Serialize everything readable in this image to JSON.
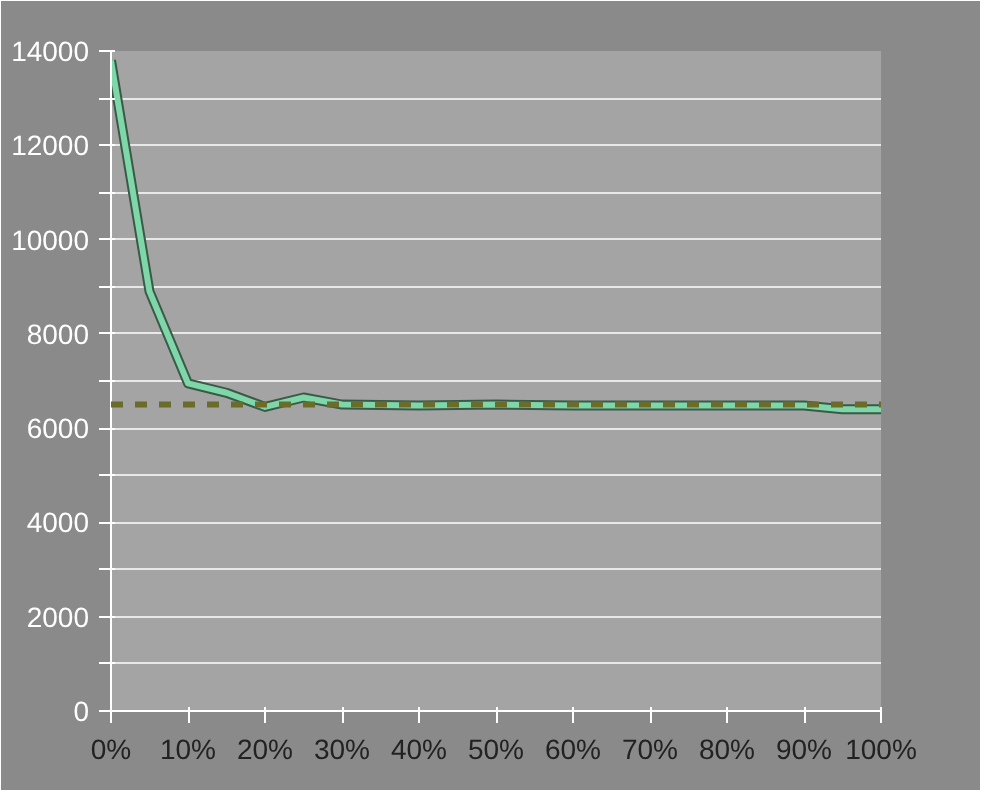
{
  "chart_data": {
    "type": "line",
    "x": [
      0,
      5,
      10,
      15,
      20,
      25,
      30,
      40,
      50,
      60,
      70,
      80,
      90,
      95,
      100
    ],
    "series": [
      {
        "color": "#7fd6a8",
        "values": [
          13800,
          8900,
          6950,
          6750,
          6450,
          6650,
          6500,
          6480,
          6500,
          6480,
          6480,
          6480,
          6480,
          6400,
          6400
        ]
      }
    ],
    "xlim": [
      0,
      100
    ],
    "xticks": [
      {
        "value": 0,
        "label": "0%"
      },
      {
        "value": 10,
        "label": "10%"
      },
      {
        "value": 20,
        "label": "20%"
      },
      {
        "value": 30,
        "label": "30%"
      },
      {
        "value": 40,
        "label": "40%"
      },
      {
        "value": 50,
        "label": "50%"
      },
      {
        "value": 60,
        "label": "60%"
      },
      {
        "value": 70,
        "label": "70%"
      },
      {
        "value": 80,
        "label": "80%"
      },
      {
        "value": 90,
        "label": "90%"
      },
      {
        "value": 100,
        "label": "100%"
      }
    ],
    "ylim": [
      0,
      14000
    ],
    "yticks": [
      0,
      {
        "value": 1000,
        "label": null
      },
      2000,
      {
        "value": 3000,
        "label": null
      },
      4000,
      {
        "value": 5000,
        "label": null
      },
      6000,
      {
        "value": 7000,
        "label": null
      },
      8000,
      {
        "value": 9000,
        "label": null
      },
      10000,
      {
        "value": 11000,
        "label": null
      },
      12000,
      {
        "value": 13000,
        "label": null
      },
      14000
    ],
    "ref_lines": [
      {
        "axis": "y",
        "value": 6500,
        "color": "#6b6b2a",
        "line_style": "dashed"
      }
    ],
    "grid": "y",
    "marker": "none",
    "line_style": "solid"
  }
}
